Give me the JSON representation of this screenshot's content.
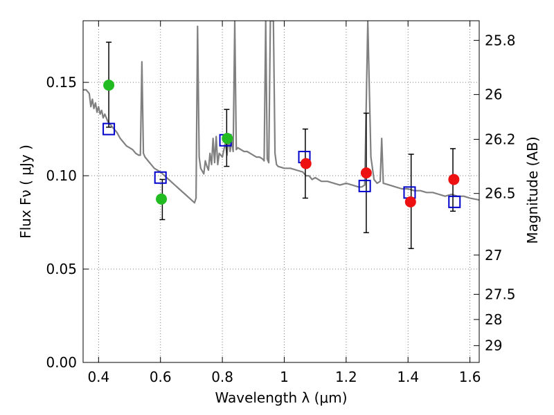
{
  "chart_data": {
    "type": "scatter",
    "xlabel": "Wavelength  λ (μm)",
    "ylabel": "Flux  Fν  ( μJy )",
    "ylabel_right": "Magnitude (AB)",
    "xlim": [
      0.35,
      1.63
    ],
    "ylim": [
      0.0,
      0.183
    ],
    "grid": true,
    "x_ticks": [
      0.4,
      0.6,
      0.8,
      1.0,
      1.2,
      1.4,
      1.6
    ],
    "x_tick_labels": [
      "0.4",
      "0.6",
      "0.8",
      "1",
      "1.2",
      "1.4",
      "1.6"
    ],
    "y_ticks": [
      0.0,
      0.05,
      0.1,
      0.15
    ],
    "y_tick_labels": [
      "0.00",
      "0.05",
      "0.10",
      "0.15"
    ],
    "right_ticks": [
      {
        "label": "25.8",
        "flux": 0.1725
      },
      {
        "label": "26",
        "flux": 0.1435
      },
      {
        "label": "26.2",
        "flux": 0.1195
      },
      {
        "label": "26.5",
        "flux": 0.0905
      },
      {
        "label": "27",
        "flux": 0.0575
      },
      {
        "label": "27.5",
        "flux": 0.0365
      },
      {
        "label": "28",
        "flux": 0.023
      },
      {
        "label": "29",
        "flux": 0.009
      }
    ],
    "series": [
      {
        "kind": "line",
        "color": "#808080",
        "points": [
          [
            0.35,
            0.146
          ],
          [
            0.36,
            0.146
          ],
          [
            0.37,
            0.144
          ],
          [
            0.375,
            0.137
          ],
          [
            0.38,
            0.141
          ],
          [
            0.385,
            0.136
          ],
          [
            0.39,
            0.139
          ],
          [
            0.395,
            0.134
          ],
          [
            0.4,
            0.137
          ],
          [
            0.405,
            0.133
          ],
          [
            0.41,
            0.135
          ],
          [
            0.415,
            0.131
          ],
          [
            0.42,
            0.133
          ],
          [
            0.43,
            0.129
          ],
          [
            0.44,
            0.127
          ],
          [
            0.45,
            0.125
          ],
          [
            0.46,
            0.123
          ],
          [
            0.47,
            0.12
          ],
          [
            0.48,
            0.118
          ],
          [
            0.49,
            0.116
          ],
          [
            0.5,
            0.115
          ],
          [
            0.51,
            0.114
          ],
          [
            0.52,
            0.112
          ],
          [
            0.53,
            0.111
          ],
          [
            0.535,
            0.111
          ],
          [
            0.54,
            0.161
          ],
          [
            0.545,
            0.112
          ],
          [
            0.55,
            0.11
          ],
          [
            0.56,
            0.108
          ],
          [
            0.57,
            0.106
          ],
          [
            0.58,
            0.104
          ],
          [
            0.6,
            0.102
          ],
          [
            0.62,
            0.099
          ],
          [
            0.64,
            0.096
          ],
          [
            0.66,
            0.093
          ],
          [
            0.68,
            0.09
          ],
          [
            0.7,
            0.087
          ],
          [
            0.71,
            0.0855
          ],
          [
            0.715,
            0.088
          ],
          [
            0.72,
            0.18
          ],
          [
            0.725,
            0.11
          ],
          [
            0.73,
            0.104
          ],
          [
            0.74,
            0.101
          ],
          [
            0.745,
            0.108
          ],
          [
            0.75,
            0.105
          ],
          [
            0.755,
            0.103
          ],
          [
            0.76,
            0.112
          ],
          [
            0.765,
            0.106
          ],
          [
            0.77,
            0.12
          ],
          [
            0.775,
            0.107
          ],
          [
            0.78,
            0.121
          ],
          [
            0.785,
            0.106
          ],
          [
            0.79,
            0.112
          ],
          [
            0.8,
            0.11
          ],
          [
            0.81,
            0.118
          ],
          [
            0.815,
            0.111
          ],
          [
            0.82,
            0.121
          ],
          [
            0.825,
            0.113
          ],
          [
            0.83,
            0.119
          ],
          [
            0.835,
            0.113
          ],
          [
            0.84,
            0.183
          ],
          [
            0.845,
            0.114
          ],
          [
            0.85,
            0.115
          ],
          [
            0.86,
            0.114
          ],
          [
            0.87,
            0.113
          ],
          [
            0.88,
            0.113
          ],
          [
            0.89,
            0.112
          ],
          [
            0.9,
            0.111
          ],
          [
            0.91,
            0.11
          ],
          [
            0.92,
            0.11
          ],
          [
            0.93,
            0.109
          ],
          [
            0.935,
            0.108
          ],
          [
            0.94,
            0.183
          ],
          [
            0.945,
            0.109
          ],
          [
            0.95,
            0.107
          ],
          [
            0.955,
            0.183
          ],
          [
            0.96,
            0.183
          ],
          [
            0.965,
            0.183
          ],
          [
            0.97,
            0.112
          ],
          [
            0.975,
            0.106
          ],
          [
            0.98,
            0.105
          ],
          [
            1.0,
            0.104
          ],
          [
            1.02,
            0.104
          ],
          [
            1.04,
            0.103
          ],
          [
            1.06,
            0.102
          ],
          [
            1.07,
            0.1
          ],
          [
            1.08,
            0.1
          ],
          [
            1.09,
            0.098
          ],
          [
            1.1,
            0.099
          ],
          [
            1.12,
            0.097
          ],
          [
            1.14,
            0.097
          ],
          [
            1.16,
            0.096
          ],
          [
            1.18,
            0.095
          ],
          [
            1.2,
            0.096
          ],
          [
            1.22,
            0.095
          ],
          [
            1.24,
            0.094
          ],
          [
            1.25,
            0.094
          ],
          [
            1.26,
            0.095
          ],
          [
            1.27,
            0.183
          ],
          [
            1.28,
            0.11
          ],
          [
            1.29,
            0.098
          ],
          [
            1.3,
            0.096
          ],
          [
            1.31,
            0.097
          ],
          [
            1.315,
            0.12
          ],
          [
            1.32,
            0.096
          ],
          [
            1.34,
            0.095
          ],
          [
            1.36,
            0.094
          ],
          [
            1.38,
            0.093
          ],
          [
            1.4,
            0.093
          ],
          [
            1.42,
            0.092
          ],
          [
            1.44,
            0.092
          ],
          [
            1.46,
            0.091
          ],
          [
            1.48,
            0.091
          ],
          [
            1.5,
            0.09
          ],
          [
            1.52,
            0.089
          ],
          [
            1.54,
            0.09
          ],
          [
            1.56,
            0.089
          ],
          [
            1.58,
            0.089
          ],
          [
            1.6,
            0.088
          ],
          [
            1.63,
            0.087
          ]
        ]
      },
      {
        "kind": "errorbars",
        "color": "#000000",
        "points": [
          {
            "x": 0.433,
            "low": 0.126,
            "high": 0.1715
          },
          {
            "x": 0.606,
            "low": 0.0765,
            "high": 0.098
          },
          {
            "x": 0.814,
            "low": 0.105,
            "high": 0.1355
          },
          {
            "x": 1.068,
            "low": 0.088,
            "high": 0.125
          },
          {
            "x": 1.265,
            "low": 0.0695,
            "high": 0.1335
          },
          {
            "x": 1.41,
            "low": 0.061,
            "high": 0.1115
          },
          {
            "x": 1.545,
            "low": 0.081,
            "high": 0.1145
          }
        ]
      },
      {
        "kind": "open-squares",
        "color": "#0000cc",
        "points": [
          [
            0.433,
            0.125
          ],
          [
            0.6,
            0.099
          ],
          [
            0.81,
            0.119
          ],
          [
            1.065,
            0.11
          ],
          [
            1.26,
            0.0945
          ],
          [
            1.405,
            0.091
          ],
          [
            1.55,
            0.086
          ]
        ]
      },
      {
        "kind": "filled-circles",
        "color": "#22bb22",
        "points": [
          [
            0.433,
            0.1485
          ],
          [
            0.603,
            0.0875
          ],
          [
            0.816,
            0.12
          ]
        ]
      },
      {
        "kind": "filled-circles",
        "color": "#ee1111",
        "points": [
          [
            1.07,
            0.1065
          ],
          [
            1.265,
            0.1015
          ],
          [
            1.408,
            0.086
          ],
          [
            1.548,
            0.098
          ]
        ]
      }
    ]
  }
}
